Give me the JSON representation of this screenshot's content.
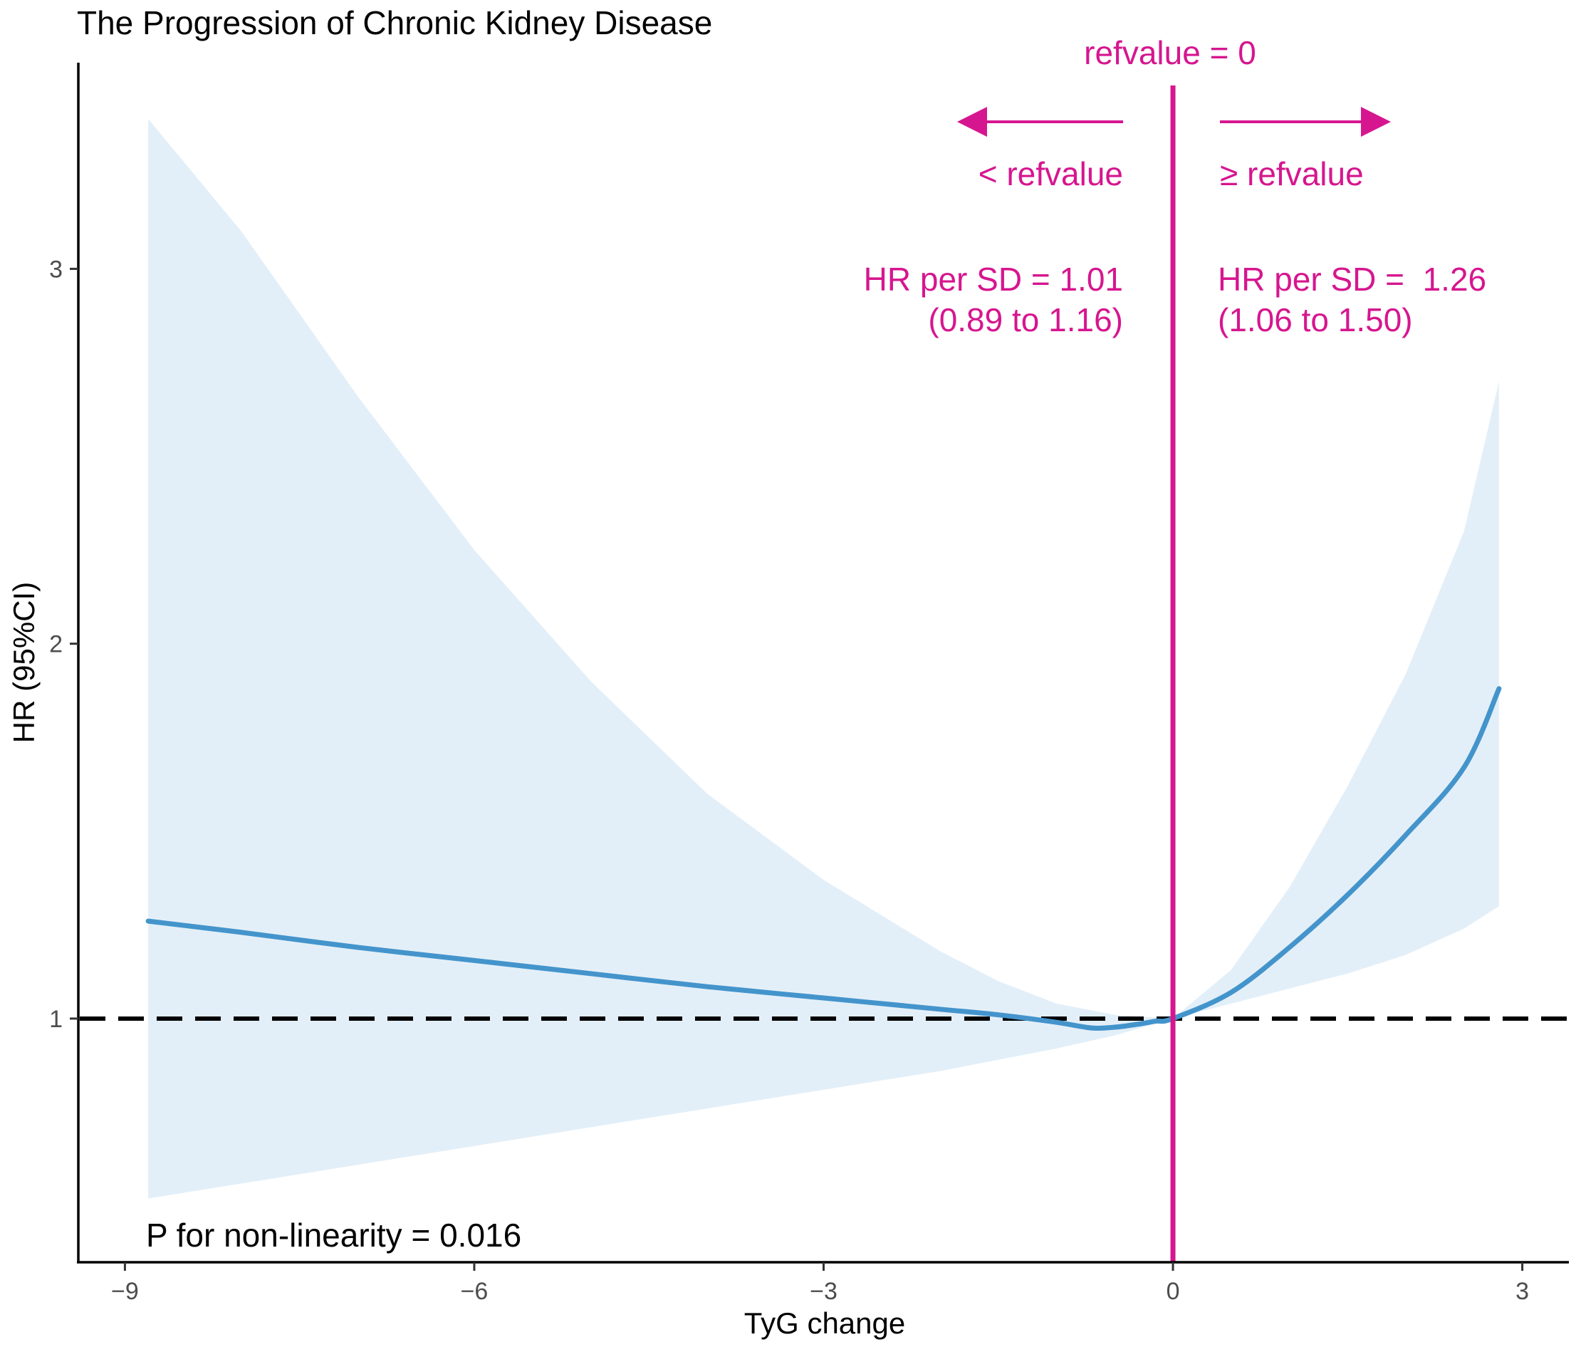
{
  "chart_data": {
    "type": "line",
    "title": "The Progression of Chronic Kidney Disease",
    "xlabel": "TyG change",
    "ylabel": "HR (95%CI)",
    "xlim": [
      -9.4,
      3.4
    ],
    "ylim": [
      0.35,
      3.55
    ],
    "xticks": [
      -9,
      -6,
      -3,
      0,
      3
    ],
    "xtick_labels": [
      "−9",
      "−6",
      "−3",
      "0",
      "3"
    ],
    "yticks": [
      1,
      2,
      3
    ],
    "ytick_labels": [
      "1",
      "2",
      "3"
    ],
    "grid": false,
    "reference_line": {
      "y": 1,
      "style": "dashed",
      "color": "#000000"
    },
    "ref_value_line": {
      "x": 0,
      "label": "refvalue = 0",
      "color": "#D6168F"
    },
    "series": [
      {
        "name": "HR",
        "color": "#4494CC",
        "x": [
          -8.8,
          -8,
          -7,
          -6,
          -5,
          -4,
          -3,
          -2,
          -1.5,
          -1,
          -0.7,
          -0.5,
          -0.3,
          -0.15,
          0,
          0.5,
          1,
          1.5,
          2,
          2.5,
          2.8
        ],
        "y": [
          1.26,
          1.23,
          1.19,
          1.155,
          1.12,
          1.085,
          1.055,
          1.025,
          1.01,
          0.99,
          0.975,
          0.977,
          0.985,
          0.993,
          1.0,
          1.07,
          1.19,
          1.33,
          1.49,
          1.67,
          1.88
        ]
      }
    ],
    "confidence_band": {
      "name": "95% CI",
      "color": "#E3EFF8",
      "x": [
        -8.8,
        -8,
        -7,
        -6,
        -5,
        -4,
        -3,
        -2,
        -1.5,
        -1,
        -0.5,
        0,
        0.5,
        1,
        1.5,
        2,
        2.5,
        2.8
      ],
      "upper": [
        3.4,
        3.1,
        2.66,
        2.25,
        1.9,
        1.6,
        1.37,
        1.18,
        1.1,
        1.04,
        1.01,
        1.0,
        1.13,
        1.35,
        1.62,
        1.92,
        2.3,
        2.7
      ],
      "lower": [
        0.52,
        0.56,
        0.61,
        0.66,
        0.71,
        0.76,
        0.81,
        0.86,
        0.89,
        0.92,
        0.955,
        1.0,
        1.04,
        1.08,
        1.12,
        1.17,
        1.24,
        1.3
      ]
    },
    "annotations": {
      "left_direction": "< refvalue",
      "right_direction": "≥ refvalue",
      "left_hr_line1": "HR per SD = 1.01",
      "left_hr_line2": "(0.89 to 1.16)",
      "right_hr_line1": "HR per SD =  1.26",
      "right_hr_line2": "(1.06 to 1.50)",
      "p_nonlinearity": "P for non-linearity = 0.016"
    },
    "colors": {
      "accent": "#D6168F",
      "line": "#4494CC",
      "band": "#E3EFF8",
      "axis": "#000000",
      "tick_label": "#4D4D4D"
    }
  }
}
